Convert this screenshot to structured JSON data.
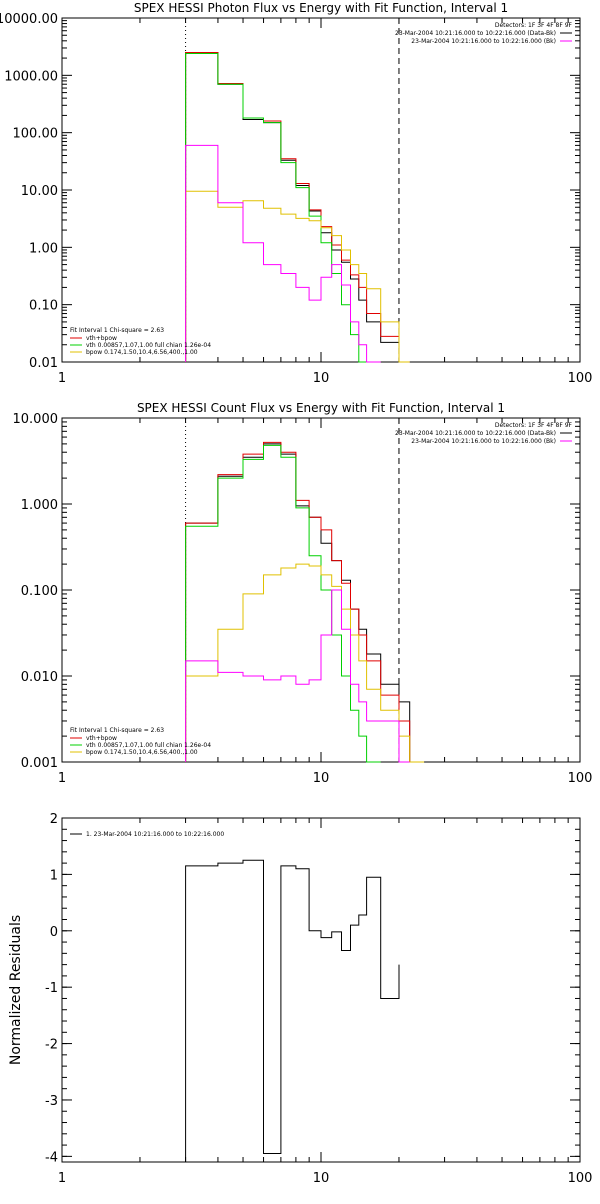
{
  "colors": {
    "data": "#000000",
    "total": "#e00000",
    "vth": "#00d000",
    "bpow": "#e0c000",
    "background": "#ff00ff"
  },
  "chart_data": [
    {
      "type": "line",
      "title": "SPEX HESSI Photon Flux vs Energy with Fit Function, Interval 1",
      "xscale": "log",
      "yscale": "log",
      "xlim": [
        1,
        100
      ],
      "ylim": [
        0.01,
        10000
      ],
      "xticks": [
        "1",
        "10",
        "100"
      ],
      "yticks": [
        "0.01",
        "0.10",
        "1.00",
        "10.00",
        "100.00",
        "1000.00",
        "10000.00"
      ],
      "bin_edges": [
        3,
        4,
        5,
        6,
        7,
        8,
        9,
        10,
        11,
        12,
        13,
        14,
        15,
        17,
        20,
        22
      ],
      "series": [
        {
          "name": "Data",
          "color_key": "data",
          "values": [
            2500,
            700,
            170,
            150,
            33,
            12,
            4.3,
            1.8,
            0.9,
            0.55,
            0.28,
            0.12,
            0.05,
            0.022
          ]
        },
        {
          "name": "vth+bpow",
          "color_key": "total",
          "values": [
            2500,
            720,
            180,
            160,
            35,
            13,
            4.5,
            2.3,
            1.1,
            0.6,
            0.33,
            0.2,
            0.07,
            0.028,
            0.01
          ]
        },
        {
          "name": "vth 0.00857,1.07,1.00 full chian 1.26e-04",
          "color_key": "vth",
          "values": [
            2400,
            700,
            180,
            150,
            30,
            11,
            3.5,
            1.2,
            0.35,
            0.1,
            0.03,
            0.01
          ]
        },
        {
          "name": "bpow 0.174,1.50,10.4,6.56,400.,1.00",
          "color_key": "bpow",
          "values": [
            9.5,
            5,
            6.5,
            4.8,
            3.8,
            3.2,
            2.9,
            2.2,
            1.6,
            0.9,
            0.5,
            0.35,
            0.19,
            0.05,
            0.01
          ]
        },
        {
          "name": "Background",
          "color_key": "background",
          "values": [
            60,
            6,
            1.2,
            0.5,
            0.35,
            0.2,
            0.12,
            0.3,
            0.5,
            0.22,
            0.05,
            0.02,
            0.01
          ]
        }
      ],
      "dotted_line_x": 3,
      "dashed_line_x": 20,
      "detectors_label": "Detectors: 1F 3F 4F 8F 9F",
      "legend_right": [
        {
          "text": "23-Mar-2004 10:21:16.000 to 10:22:16.000 (Data-Bk)",
          "color_key": "data"
        },
        {
          "text": "23-Mar-2004 10:21:16.000 to 10:22:16.000 (Bk)",
          "color_key": "background"
        }
      ],
      "legend_left_title": "Fit Interval 1    Chi-square = 2.63"
    },
    {
      "type": "line",
      "title": "SPEX HESSI Count Flux vs Energy with Fit Function, Interval 1",
      "xscale": "log",
      "yscale": "log",
      "xlim": [
        1,
        100
      ],
      "ylim": [
        0.001,
        10
      ],
      "xticks": [
        "1",
        "10",
        "100"
      ],
      "yticks": [
        "0.001",
        "0.010",
        "0.100",
        "1.000",
        "10.000"
      ],
      "bin_edges": [
        3,
        4,
        5,
        6,
        7,
        8,
        9,
        10,
        11,
        12,
        13,
        14,
        15,
        17,
        20,
        22,
        25
      ],
      "series": [
        {
          "name": "Data",
          "color_key": "data",
          "values": [
            0.6,
            2.1,
            3.5,
            5.0,
            3.8,
            0.95,
            0.7,
            0.35,
            0.22,
            0.13,
            0.06,
            0.035,
            0.018,
            0.008,
            0.005
          ]
        },
        {
          "name": "vth+bpow",
          "color_key": "total",
          "values": [
            0.6,
            2.2,
            3.8,
            5.2,
            4.0,
            1.1,
            0.7,
            0.5,
            0.22,
            0.12,
            0.06,
            0.03,
            0.015,
            0.006,
            0.003
          ]
        },
        {
          "name": "vth 0.00857,1.07,1.00 full chian 1.26e-04",
          "color_key": "vth",
          "values": [
            0.55,
            2.0,
            3.3,
            4.8,
            3.5,
            0.9,
            0.25,
            0.1,
            0.03,
            0.01,
            0.004,
            0.002,
            0.001
          ]
        },
        {
          "name": "bpow 0.174,1.50,10.4,6.56,400.,1.00",
          "color_key": "bpow",
          "values": [
            0.01,
            0.035,
            0.09,
            0.15,
            0.18,
            0.2,
            0.19,
            0.15,
            0.11,
            0.06,
            0.03,
            0.015,
            0.007,
            0.004,
            0.002,
            0.001
          ]
        },
        {
          "name": "Background",
          "color_key": "background",
          "values": [
            0.015,
            0.011,
            0.01,
            0.009,
            0.01,
            0.008,
            0.009,
            0.03,
            0.1,
            0.035,
            0.008,
            0.005,
            0.003,
            0.003,
            0.001
          ]
        }
      ],
      "dotted_line_x": 3,
      "dashed_line_x": 20,
      "detectors_label": "Detectors: 1F 3F 4F 8F 9F",
      "legend_right": [
        {
          "text": "23-Mar-2004 10:21:16.000 to 10:22:16.000 (Data-Bk)",
          "color_key": "data"
        },
        {
          "text": "23-Mar-2004 10:21:16.000 to 10:22:16.000 (Bk)",
          "color_key": "background"
        }
      ],
      "legend_left_title": "Fit Interval 1    Chi-square = 2.63"
    },
    {
      "type": "line",
      "title": "",
      "xscale": "log",
      "yscale": "linear",
      "xlim": [
        1,
        100
      ],
      "ylim": [
        -4.1,
        2
      ],
      "xticks": [
        "1",
        "10",
        "100"
      ],
      "yticks": [
        "-4",
        "-3",
        "-2",
        "-1",
        "0",
        "1",
        "2"
      ],
      "ylabel": "Normalized Residuals",
      "bin_edges": [
        3,
        4,
        5,
        6,
        7,
        8,
        9,
        10,
        11,
        12,
        13,
        14,
        15,
        17,
        20
      ],
      "series": [
        {
          "name": "1. 23-Mar-2004 10:21:16.000 to 10:22:16.000",
          "color_key": "data",
          "values": [
            1.15,
            1.2,
            1.25,
            -3.95,
            1.15,
            1.1,
            0.0,
            -0.12,
            -0.02,
            -0.35,
            0.1,
            0.28,
            0.95,
            -1.2,
            -0.6
          ]
        }
      ]
    }
  ]
}
